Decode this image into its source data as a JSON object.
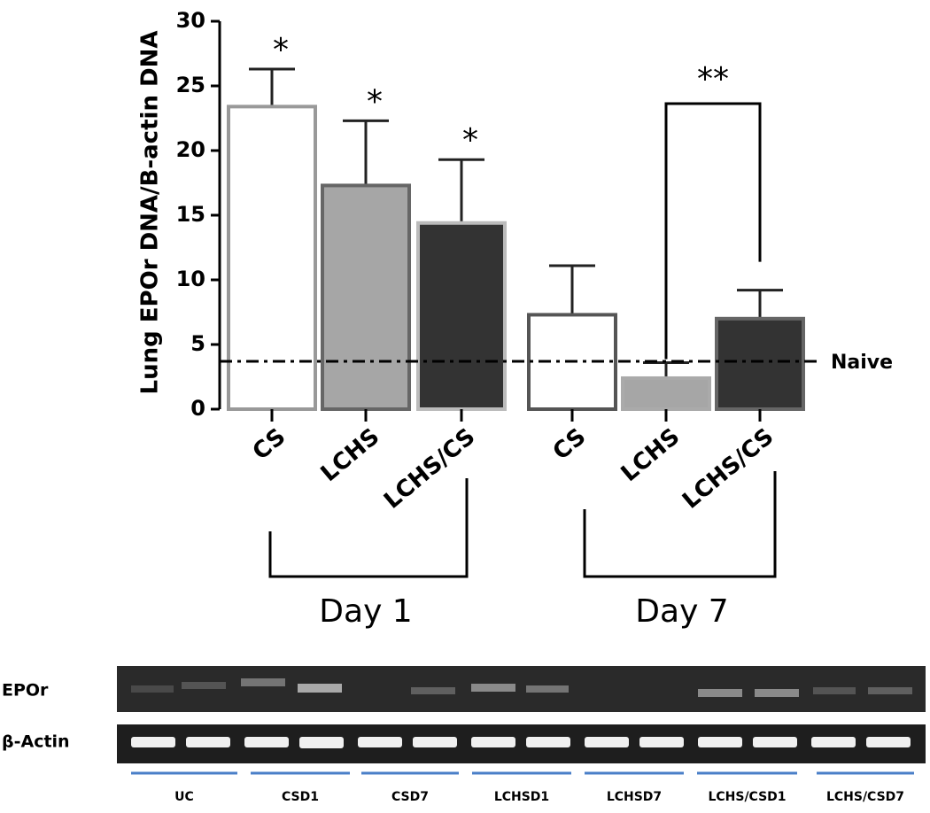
{
  "chart_data": {
    "type": "bar",
    "y_label": "Lung EPOr DNA/B-actin DNA",
    "categories": [
      "CS",
      "LCHS",
      "LCHS/CS",
      "CS",
      "LCHS",
      "LCHS/CS"
    ],
    "groups": [
      "Day 1",
      "Day 7"
    ],
    "values": [
      23.4,
      17.3,
      14.4,
      7.3,
      2.4,
      7.0
    ],
    "errors": [
      2.9,
      5.0,
      4.9,
      3.8,
      1.2,
      2.2
    ],
    "colors": [
      "#ffffff",
      "#a6a6a6",
      "#333333",
      "#ffffff",
      "#a6a6a6",
      "#333333"
    ],
    "edge_colors": [
      "#999999",
      "#666666",
      "#bbbbbb",
      "#555555",
      "#aaaaaa",
      "#666666"
    ],
    "reference": {
      "label": "Naive",
      "value": 3.7
    },
    "annotations": [
      "*",
      "*",
      "*",
      "**"
    ],
    "ylim": [
      0,
      30
    ],
    "yticks": [
      0,
      5,
      10,
      15,
      20,
      25,
      30
    ],
    "grid": false
  },
  "gel": {
    "rows": [
      "EPOr",
      "β-Actin"
    ],
    "lanes": [
      "UC",
      "CSD1",
      "CSD7",
      "LCHSD1",
      "LCHSD7",
      "LCHS/CSD1",
      "LCHS/CSD7"
    ]
  }
}
